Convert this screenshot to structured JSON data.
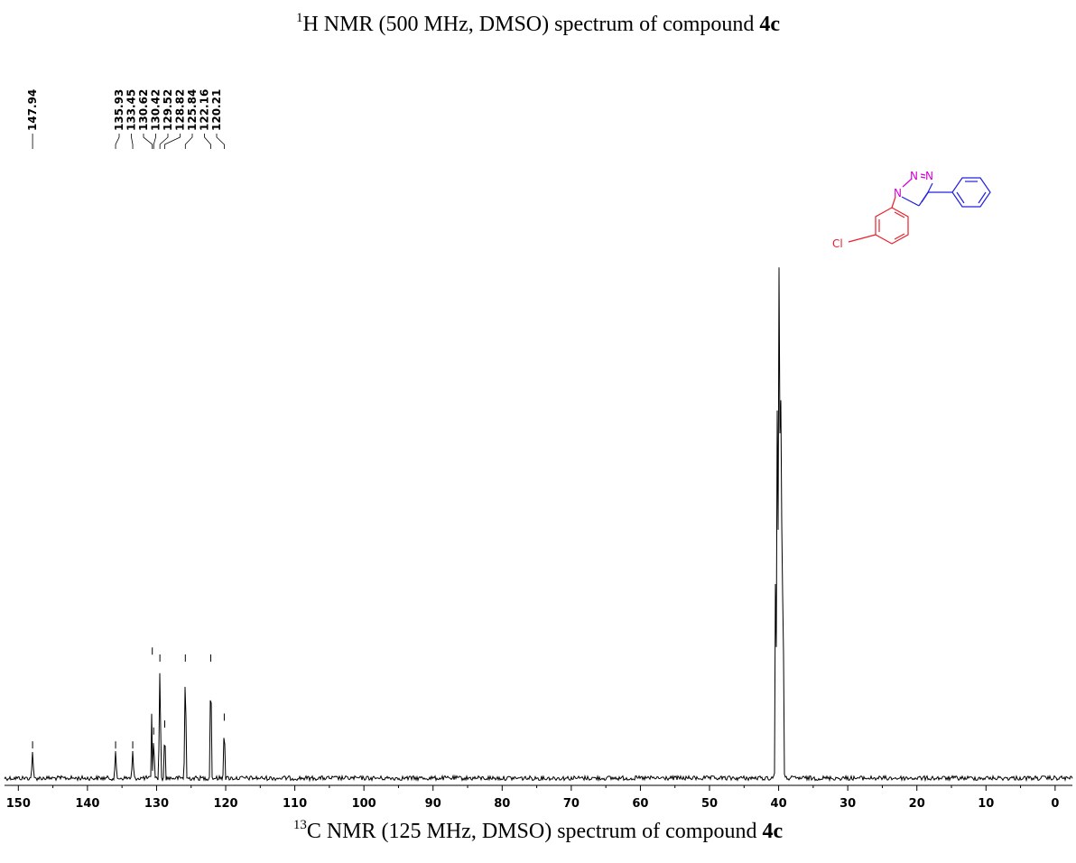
{
  "titles": {
    "top_prefix_sup": "1",
    "top_main": "H NMR (500 MHz, DMSO) spectrum of compound ",
    "top_bold": "4c",
    "bottom_prefix_sup": "13",
    "bottom_main": "C NMR (125 MHz, DMSO) spectrum of compound ",
    "bottom_bold": "4c"
  },
  "structure_labels": {
    "n1": "N",
    "n2": "N",
    "n3": "N",
    "cl": "Cl"
  },
  "colors": {
    "spectrum": "#000000",
    "chlorophenyl": "#e8202a",
    "triazole": "#d400d4",
    "phenyl": "#2020e0"
  },
  "chart_data": {
    "type": "line",
    "xlabel": "",
    "ylabel": "",
    "xlim": [
      152,
      -2.5
    ],
    "x_reversed": true,
    "xticks": [
      150,
      140,
      130,
      120,
      110,
      100,
      90,
      80,
      70,
      60,
      50,
      40,
      30,
      20,
      10,
      0
    ],
    "grid": false,
    "peaks": [
      {
        "shift": 147.94,
        "label": "147.94",
        "height": 0.04
      },
      {
        "shift": 135.93,
        "label": "135.93",
        "height": 0.04
      },
      {
        "shift": 133.45,
        "label": "133.45",
        "height": 0.04
      },
      {
        "shift": 130.62,
        "label": "130.62",
        "height": 0.175
      },
      {
        "shift": 130.42,
        "label": "130.42",
        "height": 0.06
      },
      {
        "shift": 129.52,
        "label": "129.52",
        "height": 0.165
      },
      {
        "shift": 128.82,
        "label": "128.82",
        "height": 0.07
      },
      {
        "shift": 125.84,
        "label": "125.84",
        "height": 0.165
      },
      {
        "shift": 122.16,
        "label": "122.16",
        "height": 0.165
      },
      {
        "shift": 120.21,
        "label": "120.21",
        "height": 0.08
      }
    ],
    "solvent_peak": {
      "shift": 39.9,
      "height": 1.0
    }
  }
}
